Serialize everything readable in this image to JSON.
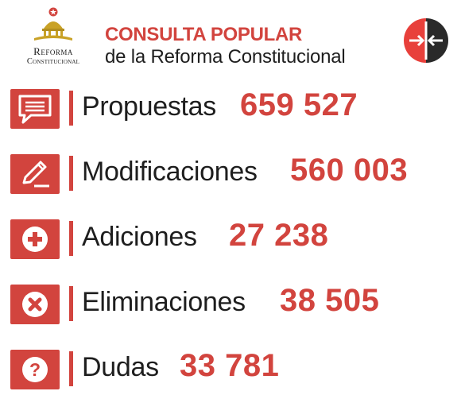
{
  "logo": {
    "line1": "Reforma",
    "line2": "Constitucional"
  },
  "header": {
    "title": "CONSULTA POPULAR",
    "subtitle": "de la Reforma Constitucional"
  },
  "brand_icon": "arrows-converging-icon",
  "colors": {
    "accent": "#d2443e",
    "text": "#1e1e1e"
  },
  "rows": [
    {
      "label": "Propuestas",
      "value": "659 527",
      "icon": "speech-bubble-icon"
    },
    {
      "label": "Modificaciones",
      "value": "560 003",
      "icon": "pencil-icon"
    },
    {
      "label": "Adiciones",
      "value": "27 238",
      "icon": "plus-circle-icon"
    },
    {
      "label": "Eliminaciones",
      "value": "38 505",
      "icon": "x-circle-icon"
    },
    {
      "label": "Dudas",
      "value": "33 781",
      "icon": "question-circle-icon"
    }
  ]
}
